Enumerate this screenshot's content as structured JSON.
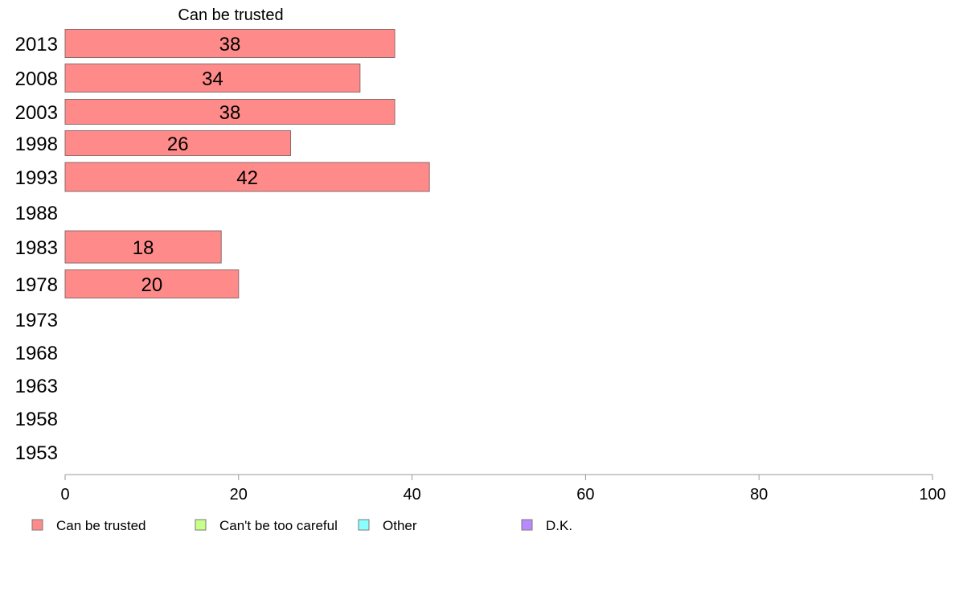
{
  "chart_data": {
    "type": "bar",
    "orientation": "horizontal",
    "title": "Can be trusted",
    "categories": [
      "2013",
      "2008",
      "2003",
      "1998",
      "1993",
      "1988",
      "1983",
      "1978",
      "1973",
      "1968",
      "1963",
      "1958",
      "1953"
    ],
    "series": [
      {
        "name": "Can be trusted",
        "color": "#ff8a8a",
        "values": [
          38,
          34,
          38,
          26,
          42,
          null,
          18,
          20,
          null,
          null,
          null,
          null,
          null
        ],
        "value_labels": [
          "38",
          "34",
          "38",
          "26",
          "42",
          "",
          "18",
          "20",
          "",
          "",
          "",
          "",
          ""
        ]
      }
    ],
    "xlim": [
      0,
      100
    ],
    "xticks": [
      "0",
      "20",
      "40",
      "60",
      "80",
      "100"
    ],
    "grid": false,
    "legend_position": "bottom",
    "legend": [
      {
        "label": "Can be trusted",
        "color": "#ff8a8a"
      },
      {
        "label": "Can't be too careful",
        "color": "#c8ff8a"
      },
      {
        "label": "Other",
        "color": "#8affff"
      },
      {
        "label": "D.K.",
        "color": "#b98aff"
      }
    ]
  }
}
